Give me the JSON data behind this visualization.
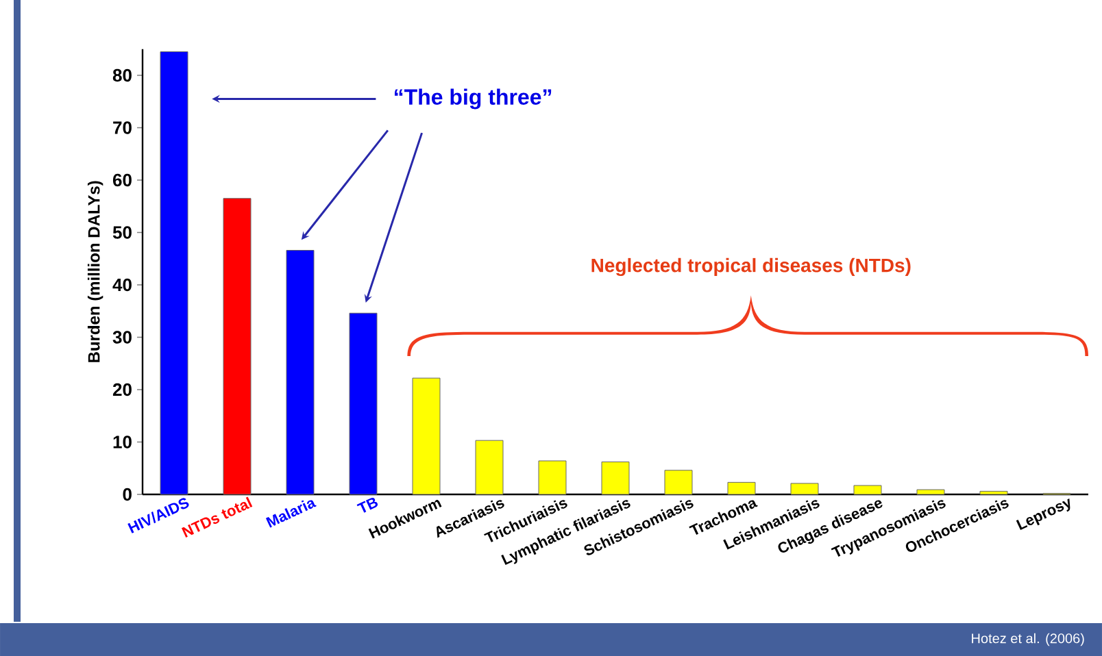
{
  "chart_data": {
    "type": "bar",
    "ylabel": "Burden (million DALYs)",
    "categories": [
      "HIV/AIDS",
      "NTDs total",
      "Malaria",
      "TB",
      "Hookworm",
      "Ascariasis",
      "Trichuriaisis",
      "Lymphatic filariasis",
      "Schistosomiasis",
      "Trachoma",
      "Leishmaniasis",
      "Chagas disease",
      "Trypanosomiasis",
      "Onchocerciasis",
      "Leprosy"
    ],
    "values": [
      84.5,
      56.5,
      46.6,
      34.6,
      22.2,
      10.3,
      6.4,
      6.2,
      4.6,
      2.3,
      2.1,
      1.7,
      0.9,
      0.6,
      0.2
    ],
    "colors": [
      "#0000ff",
      "#ff0000",
      "#0000ff",
      "#0000ff",
      "#ffff00",
      "#ffff00",
      "#ffff00",
      "#ffff00",
      "#ffff00",
      "#ffff00",
      "#ffff00",
      "#ffff00",
      "#ffff00",
      "#ffff00",
      "#ffff00"
    ],
    "ylim": [
      0,
      85
    ],
    "yticks": [
      0,
      10,
      20,
      30,
      40,
      50,
      60,
      70,
      80
    ],
    "grid": false,
    "legend": false,
    "annotations": [
      "“The big three”",
      "Neglected tropical diseases (NTDs)",
      "Hotez et al. (2006)"
    ]
  }
}
